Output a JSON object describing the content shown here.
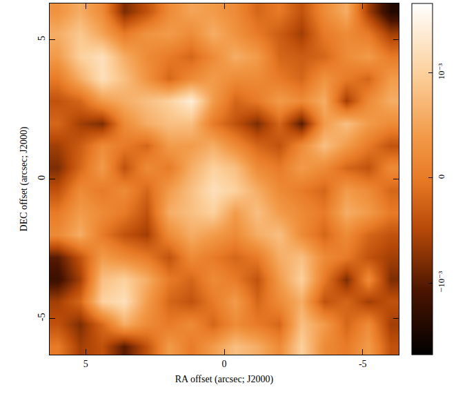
{
  "chart_data": {
    "type": "heatmap",
    "x_label": "RA offset (arcsec; J2000)",
    "y_label": "DEC offset (arcsec; J2000)",
    "xlim": [
      6.3,
      -6.3
    ],
    "ylim": [
      -6.3,
      6.3
    ],
    "xticks": [
      5,
      0,
      -5
    ],
    "yticks": [
      -5,
      0,
      5
    ],
    "x": [
      6.0,
      5.2,
      4.4,
      3.6,
      2.8,
      2.0,
      1.2,
      0.4,
      -0.4,
      -1.2,
      -2.0,
      -2.8,
      -3.6,
      -4.4,
      -5.2,
      -6.0
    ],
    "y": [
      -6.0,
      -5.2,
      -4.4,
      -3.6,
      -2.8,
      -2.0,
      -1.2,
      -0.4,
      0.4,
      1.2,
      2.0,
      2.8,
      3.6,
      4.4,
      5.2,
      6.0
    ],
    "z": [
      [
        0,
        -0.0006,
        -0.0004,
        -0.001,
        -0.0004,
        0.0004,
        0,
        0.0004,
        0.0008,
        0.0006,
        0.0002,
        0.001,
        0.0002,
        0,
        0.0004,
        -0.0004
      ],
      [
        -0.0004,
        -0.0008,
        -0.0002,
        0.0006,
        0.0002,
        0,
        0.0002,
        -0.0002,
        0.0002,
        0,
        -0.0002,
        0.0008,
        0.0004,
        -0.0002,
        0.0002,
        -0.0006
      ],
      [
        -0.0006,
        -0.0002,
        0.001,
        0.0012,
        0.0004,
        -0.0002,
        -0.0004,
        0,
        0.0004,
        -0.0002,
        0.0002,
        0.0006,
        -0.0004,
        -0.0002,
        -0.0006,
        -0.0004
      ],
      [
        -0.0012,
        -0.0006,
        0.0008,
        0.001,
        0.0006,
        0,
        -0.0002,
        0.0002,
        0,
        -0.0004,
        0.0004,
        0.001,
        0,
        -0.0008,
        0.0002,
        -0.0008
      ],
      [
        -0.001,
        -0.0004,
        0.0004,
        0.0002,
        0,
        -0.0004,
        0.0002,
        0,
        -0.0002,
        0,
        0.0006,
        0.0008,
        0.0002,
        0,
        -0.0004,
        -0.0006
      ],
      [
        0.0002,
        0.0006,
        0,
        -0.0004,
        -0.0006,
        0.0002,
        0.0006,
        0.0004,
        0.0002,
        0.0006,
        0.0008,
        0.0002,
        -0.0002,
        0.0002,
        -0.0002,
        -0.0004
      ],
      [
        0,
        0.0004,
        0.0002,
        0,
        -0.0004,
        0.0006,
        0.0008,
        0.001,
        0.0004,
        0.0008,
        0.0004,
        0.0002,
        0,
        0.0006,
        0.0004,
        0
      ],
      [
        -0.0004,
        0.0002,
        0,
        0.0002,
        -0.0002,
        0.0004,
        0.0008,
        0.0012,
        0.001,
        0.0006,
        0.0002,
        0,
        -0.0002,
        0.0004,
        0.0002,
        -0.0002
      ],
      [
        -0.0008,
        -0.0002,
        0.0004,
        -0.0004,
        0.0002,
        0,
        0.0006,
        0.001,
        0.0008,
        0.0002,
        0,
        0.0004,
        0.0002,
        -0.0002,
        -0.0004,
        0.0002
      ],
      [
        -0.0006,
        -0.0003,
        0.0002,
        0,
        -0.0002,
        0.0004,
        0.0004,
        0.0006,
        0.0002,
        -0.0002,
        -0.0004,
        0.0002,
        0.0008,
        0.0004,
        0,
        -0.0004
      ],
      [
        -0.0002,
        -0.0006,
        -0.0008,
        0.0002,
        0.0006,
        0.0008,
        0.0008,
        0,
        -0.0004,
        -0.0008,
        -0.0002,
        -0.001,
        0.0004,
        0.0008,
        0.0004,
        0.0002
      ],
      [
        -0.0004,
        -0.0002,
        0.0004,
        0.0006,
        0.0008,
        0.001,
        0.0014,
        0.0004,
        -0.0002,
        0,
        0.0004,
        0.0002,
        0.0006,
        -0.0006,
        0.0002,
        0.0006
      ],
      [
        0,
        0.0006,
        0.0012,
        0.0008,
        0.0003,
        -0.0002,
        0.0002,
        0.0004,
        0.0002,
        0.0002,
        0,
        -0.0002,
        0.0003,
        0,
        -0.0002,
        0.0004
      ],
      [
        0.0004,
        0.001,
        0.0012,
        0.0006,
        0.0002,
        0,
        -0.0002,
        0.0002,
        0.0006,
        0.0004,
        -0.0002,
        -0.0003,
        -0.0002,
        0.0002,
        0.0004,
        0
      ],
      [
        0.0006,
        0.0009,
        0.0005,
        0,
        0.0003,
        0.0004,
        0.0002,
        0.0006,
        0.0003,
        0,
        -0.0003,
        -0.0006,
        0,
        0.0002,
        0,
        -0.0006
      ],
      [
        0.0003,
        0.0006,
        0.0002,
        -0.0008,
        -0.0004,
        0.0002,
        0.0005,
        0.0004,
        0.0002,
        -0.0002,
        0,
        -0.0004,
        0.0002,
        0.0006,
        -0.0006,
        -0.0014
      ]
    ],
    "zlim": [
      -0.00168,
      0.00166
    ],
    "zticks": [
      {
        "value": -0.001,
        "label": "−10⁻³"
      },
      0,
      {
        "value": 0.001,
        "label": "10⁻³"
      }
    ]
  }
}
